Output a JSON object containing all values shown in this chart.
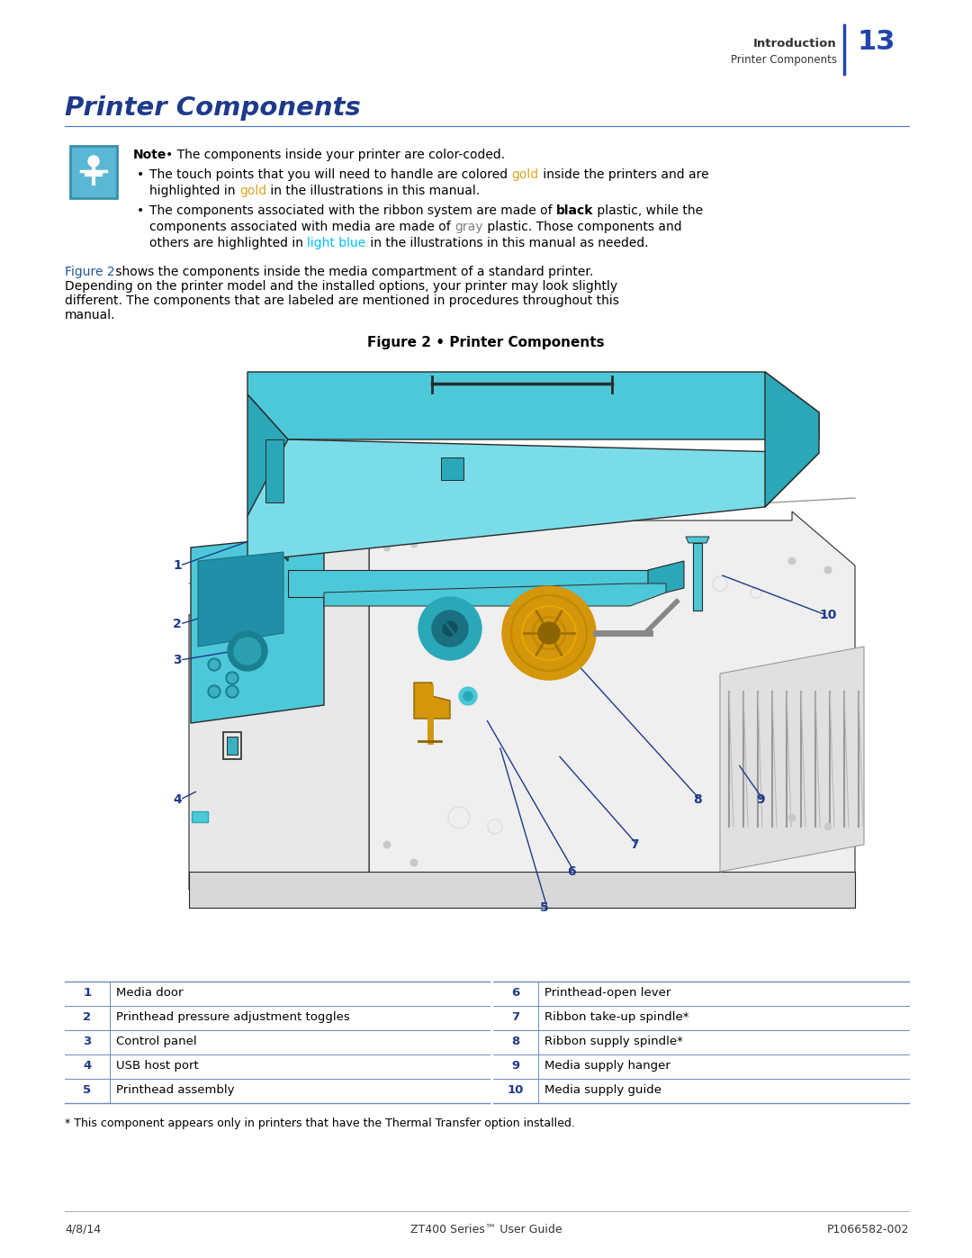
{
  "page_title": "Printer Components",
  "header_section": "Introduction",
  "header_subsection": "Printer Components",
  "page_number": "13",
  "figure_caption": "Figure 2 • Printer Components",
  "table_left": [
    {
      "num": "1",
      "label": "Media door"
    },
    {
      "num": "2",
      "label": "Printhead pressure adjustment toggles"
    },
    {
      "num": "3",
      "label": "Control panel"
    },
    {
      "num": "4",
      "label": "USB host port"
    },
    {
      "num": "5",
      "label": "Printhead assembly"
    }
  ],
  "table_right": [
    {
      "num": "6",
      "label": "Printhead-open lever"
    },
    {
      "num": "7",
      "label": "Ribbon take-up spindle*"
    },
    {
      "num": "8",
      "label": "Ribbon supply spindle*"
    },
    {
      "num": "9",
      "label": "Media supply hanger"
    },
    {
      "num": "10",
      "label": "Media supply guide"
    }
  ],
  "footnote": "* This component appears only in printers that have the Thermal Transfer option installed.",
  "footer_left": "4/8/14",
  "footer_center": "ZT400 Series™ User Guide",
  "footer_right": "P1066582-002",
  "bg_color": "#ffffff",
  "title_color": "#1E3A8A",
  "table_num_color": "#1E3A8A",
  "table_line_color": "#6B8CBA",
  "teal_main": "#4DC8D8",
  "teal_dark": "#2AA8B8",
  "teal_light": "#7ADCE8",
  "gold_color": "#D4960A",
  "gray_outline": "#999999",
  "dark_outline": "#444444",
  "callout_color": "#1E3A8A",
  "note_icon_bg": "#5BB8D4",
  "note_icon_border": "#3A8FAA",
  "gold_text_color": "#DAA520",
  "light_blue_text": "#00BFFF",
  "gray_text_color": "#808080",
  "figure2_link_color": "#1E5799",
  "header_dark": "#333333"
}
